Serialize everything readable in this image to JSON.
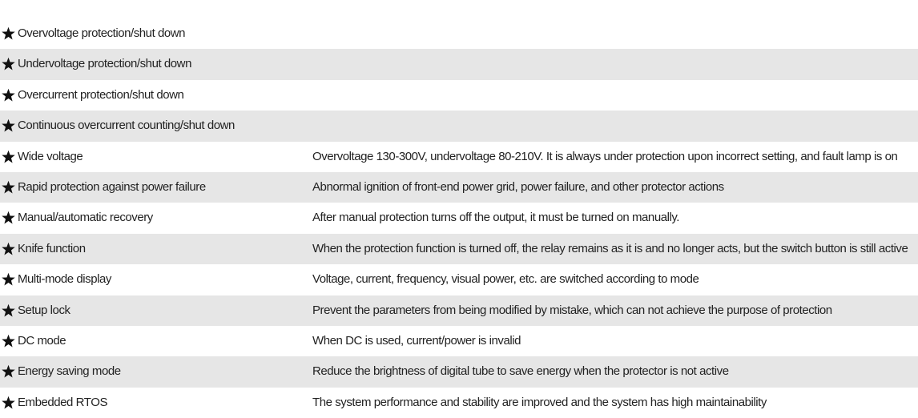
{
  "table": {
    "rows": [
      [
        "Overvoltage protection/shut down"
      ],
      [
        "Undervoltage protection/shut down"
      ],
      [
        "Overcurrent protection/shut down"
      ],
      [
        "Continuous overcurrent counting/shut down"
      ],
      [
        "Wide voltage",
        "Overvoltage 130-300V, undervoltage 80-210V. It is always under protection upon incorrect setting, and fault lamp is on"
      ],
      [
        "Rapid protection against power failure",
        "Abnormal ignition of front-end power grid, power failure, and other protector actions"
      ],
      [
        "Manual/automatic recovery",
        "After manual protection turns off the output, it must be turned on manually."
      ],
      [
        "Knife function",
        "When the protection function is turned off, the relay remains as it is and no longer acts, but the switch button is still active"
      ],
      [
        "Multi-mode display",
        "Voltage, current, frequency, visual power, etc. are switched according to mode"
      ],
      [
        "Setup lock",
        "Prevent the parameters from being modified by mistake, which can not achieve the purpose of protection"
      ],
      [
        "DC mode",
        "When DC is used, current/power is invalid"
      ],
      [
        "Energy saving mode",
        "Reduce the brightness of digital tube to save energy when the protector is not active"
      ],
      [
        "Embedded RTOS",
        "The system performance and stability are improved and the system has high maintainability"
      ]
    ]
  }
}
